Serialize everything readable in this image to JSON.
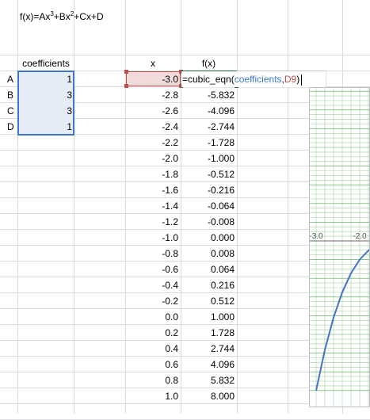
{
  "formula_title": {
    "base": "f(x)=Ax",
    "exp1": "3",
    "mid": "+Bx",
    "exp2": "2",
    "end": "+Cx+D"
  },
  "coefficients": {
    "header": "coefficients",
    "rows": [
      {
        "label": "A",
        "value": "1"
      },
      {
        "label": "B",
        "value": "3"
      },
      {
        "label": "C",
        "value": "3"
      },
      {
        "label": "D",
        "value": "1"
      }
    ]
  },
  "table": {
    "x_header": "x",
    "fx_header": "f(x)",
    "x_values": [
      "-3.0",
      "-2.8",
      "-2.6",
      "-2.4",
      "-2.2",
      "-2.0",
      "-1.8",
      "-1.6",
      "-1.4",
      "-1.2",
      "-1.0",
      "-0.8",
      "-0.6",
      "-0.4",
      "-0.2",
      "0.0",
      "0.2",
      "0.4",
      "0.6",
      "0.8",
      "1.0"
    ],
    "fx_values": [
      "",
      "-5.832",
      "-4.096",
      "-2.744",
      "-1.728",
      "-1.000",
      "-0.512",
      "-0.216",
      "-0.064",
      "-0.008",
      "0.000",
      "0.008",
      "0.064",
      "0.216",
      "0.512",
      "1.000",
      "1.728",
      "2.744",
      "4.096",
      "5.832",
      "8.000"
    ]
  },
  "formula_edit": {
    "prefix": "=cubic_eqn(",
    "arg1": "coefficients",
    "sep": ",",
    "arg2": "D9",
    "suffix": ")"
  },
  "colors": {
    "arg1": "#3c78c4",
    "arg2": "#c0504d",
    "chart_grid": "#3a9a3a",
    "curve": "#4472c4"
  },
  "chart_data": {
    "type": "line",
    "x": [
      -3.0,
      -2.8,
      -2.6,
      -2.4,
      -2.2,
      -2.0,
      -1.8,
      -1.6,
      -1.4,
      -1.2,
      -1.0,
      -0.8,
      -0.6,
      -0.4,
      -0.2,
      0.0,
      0.2,
      0.4,
      0.6,
      0.8,
      1.0
    ],
    "series": [
      {
        "values": [
          -8.0,
          -5.832,
          -4.096,
          -2.744,
          -1.728,
          -1.0,
          -0.512,
          -0.216,
          -0.064,
          -0.008,
          0.0,
          0.008,
          0.064,
          0.216,
          0.512,
          1.0,
          1.728,
          2.744,
          4.096,
          5.832,
          8.0
        ]
      }
    ],
    "tick_labels": [
      "-3.0",
      "-2.0"
    ],
    "xlim": [
      -3.0,
      1.0
    ],
    "ylim": [
      -8.0,
      8.0
    ],
    "grid": true
  }
}
